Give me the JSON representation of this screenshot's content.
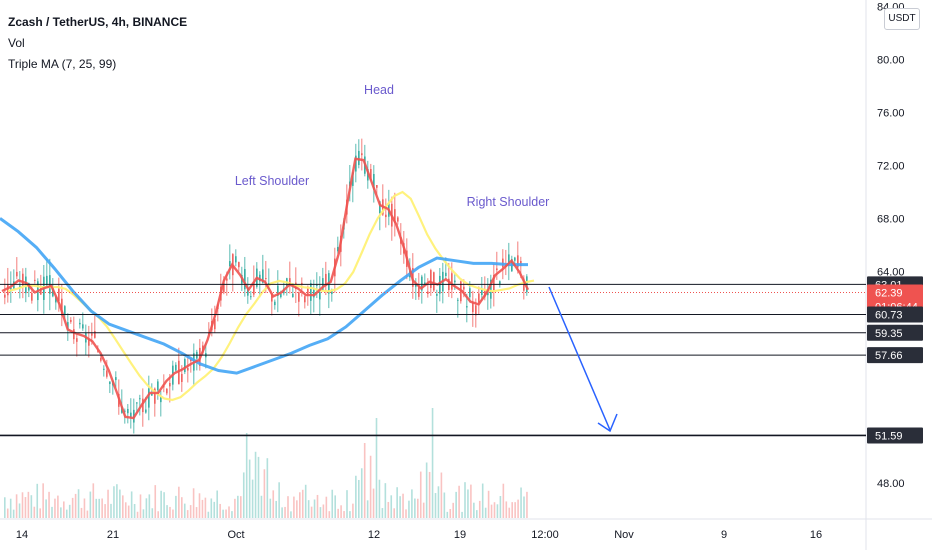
{
  "legend": {
    "symbol": "Zcash / TetherUS, 4h, BINANCE",
    "vol": "Vol",
    "ma": "Triple MA (7, 25, 99)"
  },
  "currency": "USDT",
  "colors": {
    "ma_fast": "#ef5350",
    "ma_mid": "#fff176",
    "ma_slow": "#42a5f5",
    "candle_up": "#26a69a",
    "candle_down": "#ef5350",
    "annotation": "#6a5acd",
    "arrow": "#2962ff"
  },
  "chart_data": {
    "type": "candlestick",
    "y_ticks": [
      "84.00",
      "80.00",
      "76.00",
      "72.00",
      "68.00",
      "64.00",
      "48.00"
    ],
    "x_ticks": [
      "14",
      "21",
      "Oct",
      "12",
      "19",
      "12:00",
      "Nov",
      "9",
      "16"
    ],
    "ylim": [
      46,
      84
    ],
    "annotations": [
      "Left Shoulder",
      "Head",
      "Right Shoulder"
    ],
    "price_levels": [
      {
        "label": "63.01",
        "value": 63.01,
        "style": "dark"
      },
      {
        "label": "62.39",
        "value": 62.39,
        "style": "red"
      },
      {
        "label": "01:06:44",
        "value": 61.35,
        "style": "red"
      },
      {
        "label": "60.73",
        "value": 60.73,
        "style": "dark"
      },
      {
        "label": "59.35",
        "value": 59.35,
        "style": "dark"
      },
      {
        "label": "57.66",
        "value": 57.66,
        "style": "dark"
      },
      {
        "label": "51.59",
        "value": 51.59,
        "style": "dark"
      }
    ],
    "ma_fast": [
      62.5,
      62.8,
      63.3,
      63.1,
      62.4,
      62.7,
      62.9,
      61.5,
      59.6,
      59.3,
      59.1,
      58.7,
      57.8,
      56.5,
      54.8,
      53.0,
      52.9,
      53.9,
      54.8,
      54.8,
      55.7,
      56.3,
      56.6,
      57.0,
      57.3,
      58.8,
      60.8,
      63.3,
      64.5,
      63.7,
      62.6,
      63.5,
      63.2,
      62.1,
      62.4,
      63.0,
      62.7,
      62.2,
      62.2,
      62.8,
      63.2,
      65.4,
      69.1,
      72.5,
      72.4,
      70.7,
      69.0,
      68.7,
      67.5,
      65.6,
      63.3,
      62.7,
      63.2,
      63.0,
      63.4,
      62.9,
      62.5,
      61.7,
      61.5,
      62.4,
      63.7,
      64.2,
      64.8,
      63.9,
      62.6
    ],
    "ma_slow": [
      68.0,
      67.0,
      65.8,
      64.2,
      62.5,
      61.0,
      60.0,
      59.5,
      59.0,
      58.5,
      57.8,
      57.0,
      56.5,
      56.3,
      56.8,
      57.3,
      57.8,
      58.4,
      58.9,
      59.8,
      61.0,
      62.2,
      63.3,
      64.3,
      65.0,
      64.8,
      64.6,
      64.6,
      64.5,
      64.5
    ]
  }
}
